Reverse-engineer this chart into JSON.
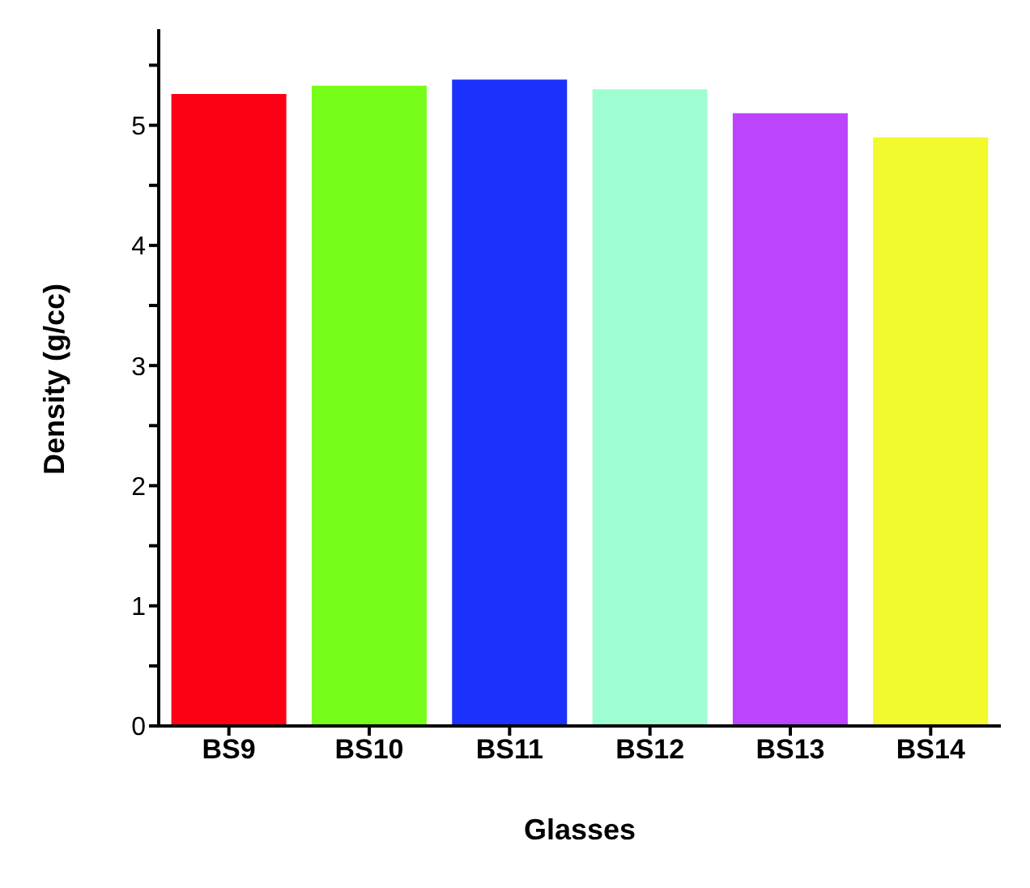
{
  "chart_data": {
    "type": "bar",
    "xlabel": "Glasses",
    "ylabel": "Density (g/cc)",
    "categories": [
      "BS9",
      "BS10",
      "BS11",
      "BS12",
      "BS13",
      "BS14"
    ],
    "values": [
      5.26,
      5.33,
      5.38,
      5.3,
      5.1,
      4.9
    ],
    "colors": [
      "#fc0013",
      "#76fd19",
      "#1b32fc",
      "#9efdd1",
      "#bb44fc",
      "#f2f92d"
    ],
    "ylim": [
      0,
      5.8
    ],
    "yticks": [
      0,
      {
        "value": 0.5,
        "label": null
      },
      1,
      {
        "value": 1.5,
        "label": null
      },
      2,
      {
        "value": 2.5,
        "label": null
      },
      3,
      {
        "value": 3.5,
        "label": null
      },
      4,
      {
        "value": 4.5,
        "label": null
      },
      5,
      {
        "value": 5.5,
        "label": null
      }
    ],
    "grid": false,
    "legend": false
  }
}
